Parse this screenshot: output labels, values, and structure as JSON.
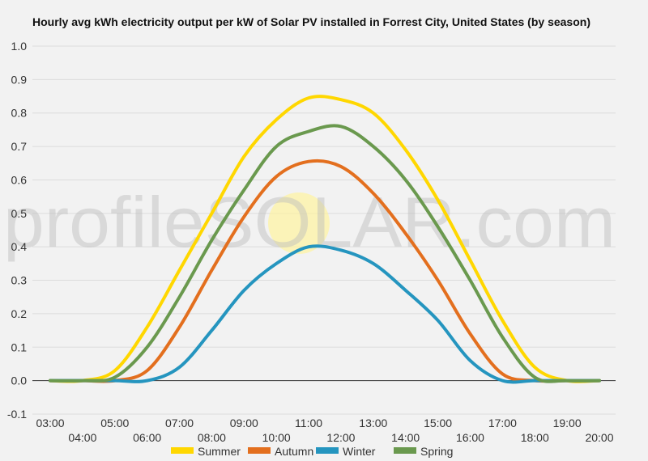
{
  "chart_data": {
    "type": "line",
    "title": "Hourly avg kWh electricity output per kW of Solar PV installed in Forrest City, United States (by season)",
    "watermark": "profileSOLAR.com",
    "xlabel": "",
    "ylabel": "",
    "x": [
      "03:00",
      "04:00",
      "05:00",
      "06:00",
      "07:00",
      "08:00",
      "09:00",
      "10:00",
      "11:00",
      "12:00",
      "13:00",
      "14:00",
      "15:00",
      "16:00",
      "17:00",
      "18:00",
      "19:00",
      "20:00"
    ],
    "ylim": [
      -0.1,
      1.0
    ],
    "yticks": [
      "-0.1",
      "0.0",
      "0.1",
      "0.2",
      "0.3",
      "0.4",
      "0.5",
      "0.6",
      "0.7",
      "0.8",
      "0.9",
      "1.0"
    ],
    "grid": true,
    "legend_position": "bottom",
    "series": [
      {
        "name": "Summer",
        "color": "#ffd700",
        "values": [
          0,
          0,
          0.03,
          0.16,
          0.33,
          0.5,
          0.67,
          0.78,
          0.845,
          0.84,
          0.8,
          0.69,
          0.54,
          0.36,
          0.18,
          0.04,
          0,
          0
        ]
      },
      {
        "name": "Autumn",
        "color": "#e36f1e",
        "values": [
          0,
          0,
          0,
          0.03,
          0.16,
          0.33,
          0.49,
          0.61,
          0.655,
          0.64,
          0.56,
          0.44,
          0.3,
          0.14,
          0.02,
          0,
          0,
          0
        ]
      },
      {
        "name": "Winter",
        "color": "#2595bf",
        "values": [
          0,
          0,
          0,
          0,
          0.04,
          0.15,
          0.27,
          0.35,
          0.4,
          0.39,
          0.35,
          0.27,
          0.18,
          0.06,
          0,
          0,
          0,
          0
        ]
      },
      {
        "name": "Spring",
        "color": "#6a994e",
        "values": [
          0,
          0,
          0.01,
          0.1,
          0.25,
          0.42,
          0.57,
          0.7,
          0.745,
          0.76,
          0.7,
          0.6,
          0.46,
          0.3,
          0.13,
          0.01,
          0,
          0
        ]
      }
    ]
  }
}
